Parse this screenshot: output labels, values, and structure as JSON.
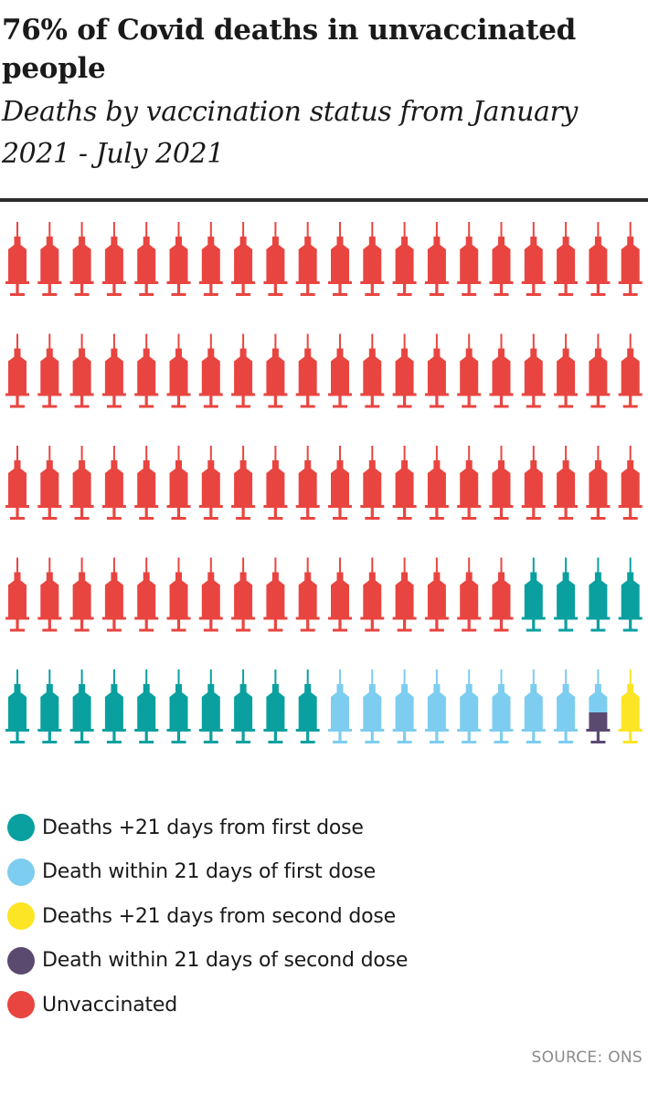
{
  "title": "76% of Covid deaths in unvaccinated people",
  "subtitle": "Deaths by vaccination status from January 2021 - July 2021",
  "chart_data": {
    "type": "pictogram",
    "total_icons": 100,
    "icons_per_row": 20,
    "categories": [
      {
        "label": "Deaths +21 days from first dose",
        "color": "#0aa0a0",
        "icons": 14
      },
      {
        "label": "Death within 21 days of first dose",
        "color": "#7dcdf0",
        "icons": 8.5
      },
      {
        "label": "Deaths +21 days from second dose",
        "color": "#fbe525",
        "icons": 1
      },
      {
        "label": "Death within 21 days of second dose",
        "color": "#5b4a70",
        "icons": 0.5
      },
      {
        "label": "Unvaccinated",
        "color": "#e84540",
        "icons": 76
      }
    ],
    "fill_order": [
      "Unvaccinated",
      "Deaths +21 days from first dose",
      "Death within 21 days of first dose",
      "Death within 21 days of second dose",
      "Deaths +21 days from second dose"
    ]
  },
  "source": "SOURCE: ONS"
}
